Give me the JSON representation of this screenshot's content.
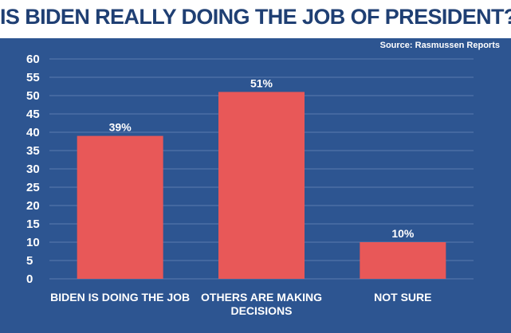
{
  "header": {
    "title": "IS BIDEN REALLY DOING THE JOB OF PRESIDENT?",
    "source": "Source: Rasmussen Reports"
  },
  "colors": {
    "background": "#2d5591",
    "bar": "#e85858",
    "title": "#1f3f73",
    "gridline": "#5a7bb0"
  },
  "chart_data": {
    "type": "bar",
    "title": "IS BIDEN REALLY DOING THE JOB OF PRESIDENT?",
    "categories": [
      "BIDEN IS DOING THE JOB",
      "OTHERS ARE MAKING DECISIONS",
      "NOT SURE"
    ],
    "category_lines": [
      [
        "BIDEN IS DOING THE JOB"
      ],
      [
        "OTHERS ARE MAKING",
        "DECISIONS"
      ],
      [
        "NOT SURE"
      ]
    ],
    "values": [
      39,
      51,
      10
    ],
    "data_labels": [
      "39%",
      "51%",
      "10%"
    ],
    "xlabel": "",
    "ylabel": "",
    "ylim": [
      0,
      60
    ],
    "yticks": [
      0,
      5,
      10,
      15,
      20,
      25,
      30,
      35,
      40,
      45,
      50,
      55,
      60
    ],
    "grid": true,
    "source": "Source: Rasmussen Reports"
  }
}
